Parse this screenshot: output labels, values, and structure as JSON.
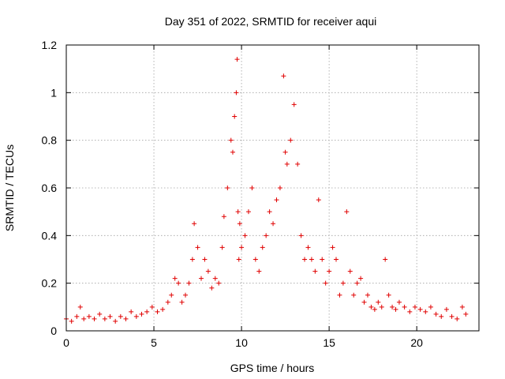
{
  "chart_data": {
    "type": "scatter",
    "title": "Day 351 of 2022, SRMTID for receiver aqui",
    "xlabel": "GPS time / hours",
    "ylabel": "SRMTID / TECUs",
    "xlim": [
      0,
      23.55
    ],
    "ylim": [
      0,
      1.2
    ],
    "xticks": [
      0,
      5,
      10,
      15,
      20
    ],
    "yticks": [
      0,
      0.2,
      0.4,
      0.6,
      0.8,
      1,
      1.2
    ],
    "xtick_labels": [
      "0",
      "5",
      "10",
      "15",
      "20"
    ],
    "ytick_labels": [
      "0",
      "0.2",
      "0.4",
      "0.6",
      "0.8",
      "1",
      "1.2"
    ],
    "grid": true,
    "marker": "+",
    "series": [
      {
        "name": "SRMTID",
        "color": "#e00000",
        "x": [
          0.0,
          0.3,
          0.6,
          0.8,
          1.0,
          1.3,
          1.6,
          1.9,
          2.2,
          2.5,
          2.8,
          3.1,
          3.4,
          3.7,
          4.0,
          4.3,
          4.6,
          4.9,
          5.2,
          5.5,
          5.8,
          6.0,
          6.2,
          6.4,
          6.6,
          6.8,
          7.0,
          7.2,
          7.3,
          7.5,
          7.7,
          7.9,
          8.1,
          8.3,
          8.5,
          8.7,
          8.9,
          9.0,
          9.2,
          9.4,
          9.5,
          9.6,
          9.7,
          9.75,
          9.8,
          9.85,
          9.9,
          10.0,
          10.2,
          10.4,
          10.6,
          10.8,
          11.0,
          11.2,
          11.4,
          11.6,
          11.8,
          12.0,
          12.2,
          12.4,
          12.5,
          12.6,
          12.8,
          13.0,
          13.2,
          13.4,
          13.6,
          13.8,
          14.0,
          14.2,
          14.4,
          14.6,
          14.8,
          15.0,
          15.2,
          15.4,
          15.6,
          15.8,
          16.0,
          16.2,
          16.4,
          16.6,
          16.8,
          17.0,
          17.2,
          17.4,
          17.6,
          17.8,
          18.0,
          18.2,
          18.4,
          18.6,
          18.8,
          19.0,
          19.3,
          19.6,
          19.9,
          20.2,
          20.5,
          20.8,
          21.1,
          21.4,
          21.7,
          22.0,
          22.3,
          22.6,
          22.8
        ],
        "y": [
          0.05,
          0.04,
          0.06,
          0.1,
          0.05,
          0.06,
          0.05,
          0.07,
          0.05,
          0.06,
          0.04,
          0.06,
          0.05,
          0.08,
          0.06,
          0.07,
          0.08,
          0.1,
          0.08,
          0.09,
          0.12,
          0.15,
          0.22,
          0.2,
          0.12,
          0.15,
          0.2,
          0.3,
          0.45,
          0.35,
          0.22,
          0.3,
          0.25,
          0.18,
          0.22,
          0.2,
          0.35,
          0.48,
          0.6,
          0.8,
          0.75,
          0.9,
          1.0,
          1.14,
          0.5,
          0.3,
          0.45,
          0.35,
          0.4,
          0.5,
          0.6,
          0.3,
          0.25,
          0.35,
          0.4,
          0.5,
          0.45,
          0.55,
          0.6,
          1.07,
          0.75,
          0.7,
          0.8,
          0.95,
          0.7,
          0.4,
          0.3,
          0.35,
          0.3,
          0.25,
          0.55,
          0.3,
          0.2,
          0.25,
          0.35,
          0.3,
          0.15,
          0.2,
          0.5,
          0.25,
          0.15,
          0.2,
          0.22,
          0.12,
          0.15,
          0.1,
          0.09,
          0.12,
          0.1,
          0.3,
          0.15,
          0.1,
          0.09,
          0.12,
          0.1,
          0.08,
          0.1,
          0.09,
          0.08,
          0.1,
          0.07,
          0.06,
          0.09,
          0.06,
          0.05,
          0.1,
          0.07
        ]
      }
    ]
  }
}
